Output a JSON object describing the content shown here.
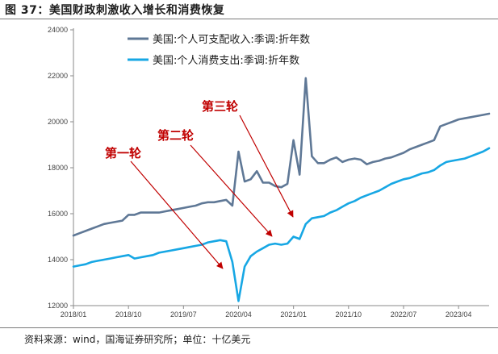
{
  "figure": {
    "title": "图 37：美国财政刺激收入增长和消费恢复",
    "source": "资料来源：wind，国海证券研究所；单位：十亿美元"
  },
  "chart_data": {
    "type": "line",
    "ylim": [
      12000,
      24000
    ],
    "yticks": [
      12000,
      14000,
      16000,
      18000,
      20000,
      22000,
      24000
    ],
    "xlim": [
      "2018-01",
      "2023-09"
    ],
    "xticks": [
      "2018/01",
      "2018/10",
      "2019/07",
      "2020/04",
      "2021/01",
      "2021/10",
      "2022/07",
      "2023/04"
    ],
    "legend_position": "top-left",
    "grid": false,
    "colors": {
      "income": "#5f7896",
      "consumption": "#17a7e4",
      "annotation": "#c00000"
    },
    "series": [
      {
        "name": "美国:个人可支配收入:季调:折年数",
        "color": "#5f7896",
        "x": [
          "2018-01",
          "2018-02",
          "2018-03",
          "2018-04",
          "2018-05",
          "2018-06",
          "2018-07",
          "2018-08",
          "2018-09",
          "2018-10",
          "2018-11",
          "2018-12",
          "2019-01",
          "2019-02",
          "2019-03",
          "2019-04",
          "2019-05",
          "2019-06",
          "2019-07",
          "2019-08",
          "2019-09",
          "2019-10",
          "2019-11",
          "2019-12",
          "2020-01",
          "2020-02",
          "2020-03",
          "2020-04",
          "2020-05",
          "2020-06",
          "2020-07",
          "2020-08",
          "2020-09",
          "2020-10",
          "2020-11",
          "2020-12",
          "2021-01",
          "2021-02",
          "2021-03",
          "2021-04",
          "2021-05",
          "2021-06",
          "2021-07",
          "2021-08",
          "2021-09",
          "2021-10",
          "2021-11",
          "2021-12",
          "2022-01",
          "2022-02",
          "2022-03",
          "2022-04",
          "2022-05",
          "2022-06",
          "2022-07",
          "2022-08",
          "2022-09",
          "2022-10",
          "2022-11",
          "2022-12",
          "2023-01",
          "2023-02",
          "2023-03",
          "2023-04",
          "2023-05",
          "2023-06",
          "2023-07",
          "2023-08",
          "2023-09"
        ],
        "values": [
          15050,
          15150,
          15250,
          15350,
          15450,
          15550,
          15600,
          15650,
          15700,
          15950,
          15950,
          16050,
          16050,
          16050,
          16050,
          16100,
          16150,
          16200,
          16250,
          16300,
          16350,
          16450,
          16500,
          16500,
          16550,
          16600,
          16350,
          18700,
          17400,
          17500,
          17850,
          17350,
          17350,
          17200,
          17150,
          17300,
          19200,
          17700,
          21900,
          18500,
          18200,
          18200,
          18350,
          18450,
          18250,
          18350,
          18400,
          18350,
          18150,
          18250,
          18300,
          18400,
          18450,
          18550,
          18650,
          18800,
          18900,
          19000,
          19100,
          19200,
          19800,
          19900,
          20000,
          20100,
          20150,
          20200,
          20250,
          20300,
          20350
        ]
      },
      {
        "name": "美国:个人消费支出:季调:折年数",
        "color": "#17a7e4",
        "x": [
          "2018-01",
          "2018-02",
          "2018-03",
          "2018-04",
          "2018-05",
          "2018-06",
          "2018-07",
          "2018-08",
          "2018-09",
          "2018-10",
          "2018-11",
          "2018-12",
          "2019-01",
          "2019-02",
          "2019-03",
          "2019-04",
          "2019-05",
          "2019-06",
          "2019-07",
          "2019-08",
          "2019-09",
          "2019-10",
          "2019-11",
          "2019-12",
          "2020-01",
          "2020-02",
          "2020-03",
          "2020-04",
          "2020-05",
          "2020-06",
          "2020-07",
          "2020-08",
          "2020-09",
          "2020-10",
          "2020-11",
          "2020-12",
          "2021-01",
          "2021-02",
          "2021-03",
          "2021-04",
          "2021-05",
          "2021-06",
          "2021-07",
          "2021-08",
          "2021-09",
          "2021-10",
          "2021-11",
          "2021-12",
          "2022-01",
          "2022-02",
          "2022-03",
          "2022-04",
          "2022-05",
          "2022-06",
          "2022-07",
          "2022-08",
          "2022-09",
          "2022-10",
          "2022-11",
          "2022-12",
          "2023-01",
          "2023-02",
          "2023-03",
          "2023-04",
          "2023-05",
          "2023-06",
          "2023-07",
          "2023-08",
          "2023-09"
        ],
        "values": [
          13700,
          13750,
          13800,
          13900,
          13950,
          14000,
          14050,
          14100,
          14150,
          14200,
          14050,
          14100,
          14150,
          14200,
          14300,
          14350,
          14400,
          14450,
          14500,
          14550,
          14600,
          14650,
          14750,
          14800,
          14850,
          14800,
          13900,
          12200,
          13700,
          14150,
          14350,
          14500,
          14650,
          14700,
          14650,
          14700,
          15000,
          14900,
          15550,
          15800,
          15850,
          15900,
          16050,
          16150,
          16300,
          16450,
          16550,
          16700,
          16800,
          16900,
          17000,
          17150,
          17300,
          17400,
          17500,
          17550,
          17650,
          17750,
          17800,
          17900,
          18100,
          18250,
          18300,
          18350,
          18400,
          18500,
          18600,
          18700,
          18850
        ]
      }
    ],
    "annotations": [
      {
        "label": "第一轮",
        "target": "2020-04"
      },
      {
        "label": "第二轮",
        "target": "2021-01"
      },
      {
        "label": "第三轮",
        "target": "2021-03"
      }
    ]
  }
}
